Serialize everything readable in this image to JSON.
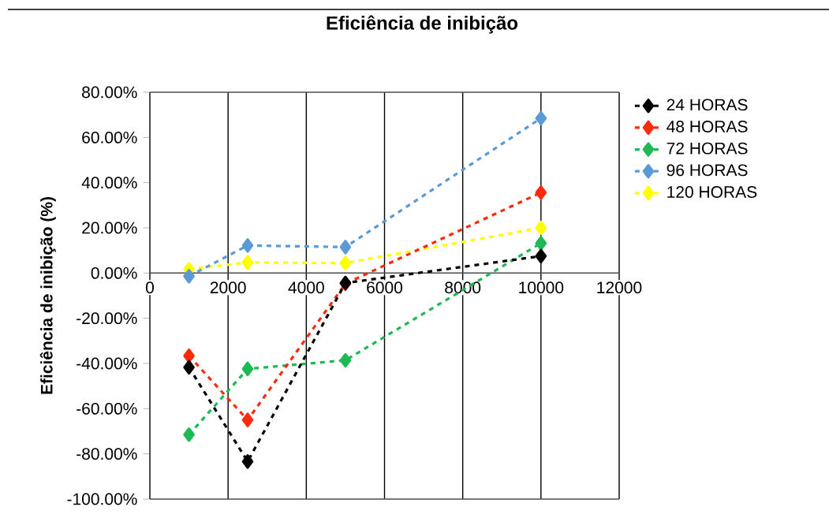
{
  "chart_data": {
    "type": "line",
    "title": "Eficiência de inibição",
    "ylabel": "Eficiência de inibição (%)",
    "x": [
      1000,
      2500,
      5000,
      10000
    ],
    "series": [
      {
        "name": "24 HORAS",
        "color": "#000000",
        "values": [
          -41.7,
          -83.4,
          -4.4,
          7.5
        ]
      },
      {
        "name": "48 HORAS",
        "color": "#ff2a0a",
        "values": [
          -36.6,
          -65,
          -4.7,
          35.6
        ]
      },
      {
        "name": "72 HORAS",
        "color": "#1db954",
        "values": [
          -71.5,
          -42.4,
          -38.6,
          13.2
        ]
      },
      {
        "name": "96 HORAS",
        "color": "#5b9bd5",
        "values": [
          -1.4,
          12.2,
          11.5,
          68.5
        ]
      },
      {
        "name": "120 HORAS",
        "color": "#ffff00",
        "values": [
          1.7,
          4.7,
          4.4,
          20
        ]
      }
    ],
    "xlim": [
      0,
      12000
    ],
    "xticks": [
      0,
      2000,
      4000,
      6000,
      8000,
      10000,
      12000
    ],
    "ylim": [
      -100,
      80
    ],
    "yticks": [
      {
        "value": 80,
        "label": "80.00%"
      },
      {
        "value": 60,
        "label": "60.00%"
      },
      {
        "value": 40,
        "label": "40.00%"
      },
      {
        "value": 20,
        "label": "20.00%"
      },
      {
        "value": 0,
        "label": "0.00%"
      },
      {
        "value": -20,
        "label": "-20.00%"
      },
      {
        "value": -40,
        "label": "-40.00%"
      },
      {
        "value": -60,
        "label": "-60.00%"
      },
      {
        "value": -80,
        "label": "-80.00%"
      },
      {
        "value": -100,
        "label": "-100.00%"
      }
    ],
    "grid": "x",
    "legend": "right",
    "marker": "diamond",
    "line_style": "dashed"
  }
}
